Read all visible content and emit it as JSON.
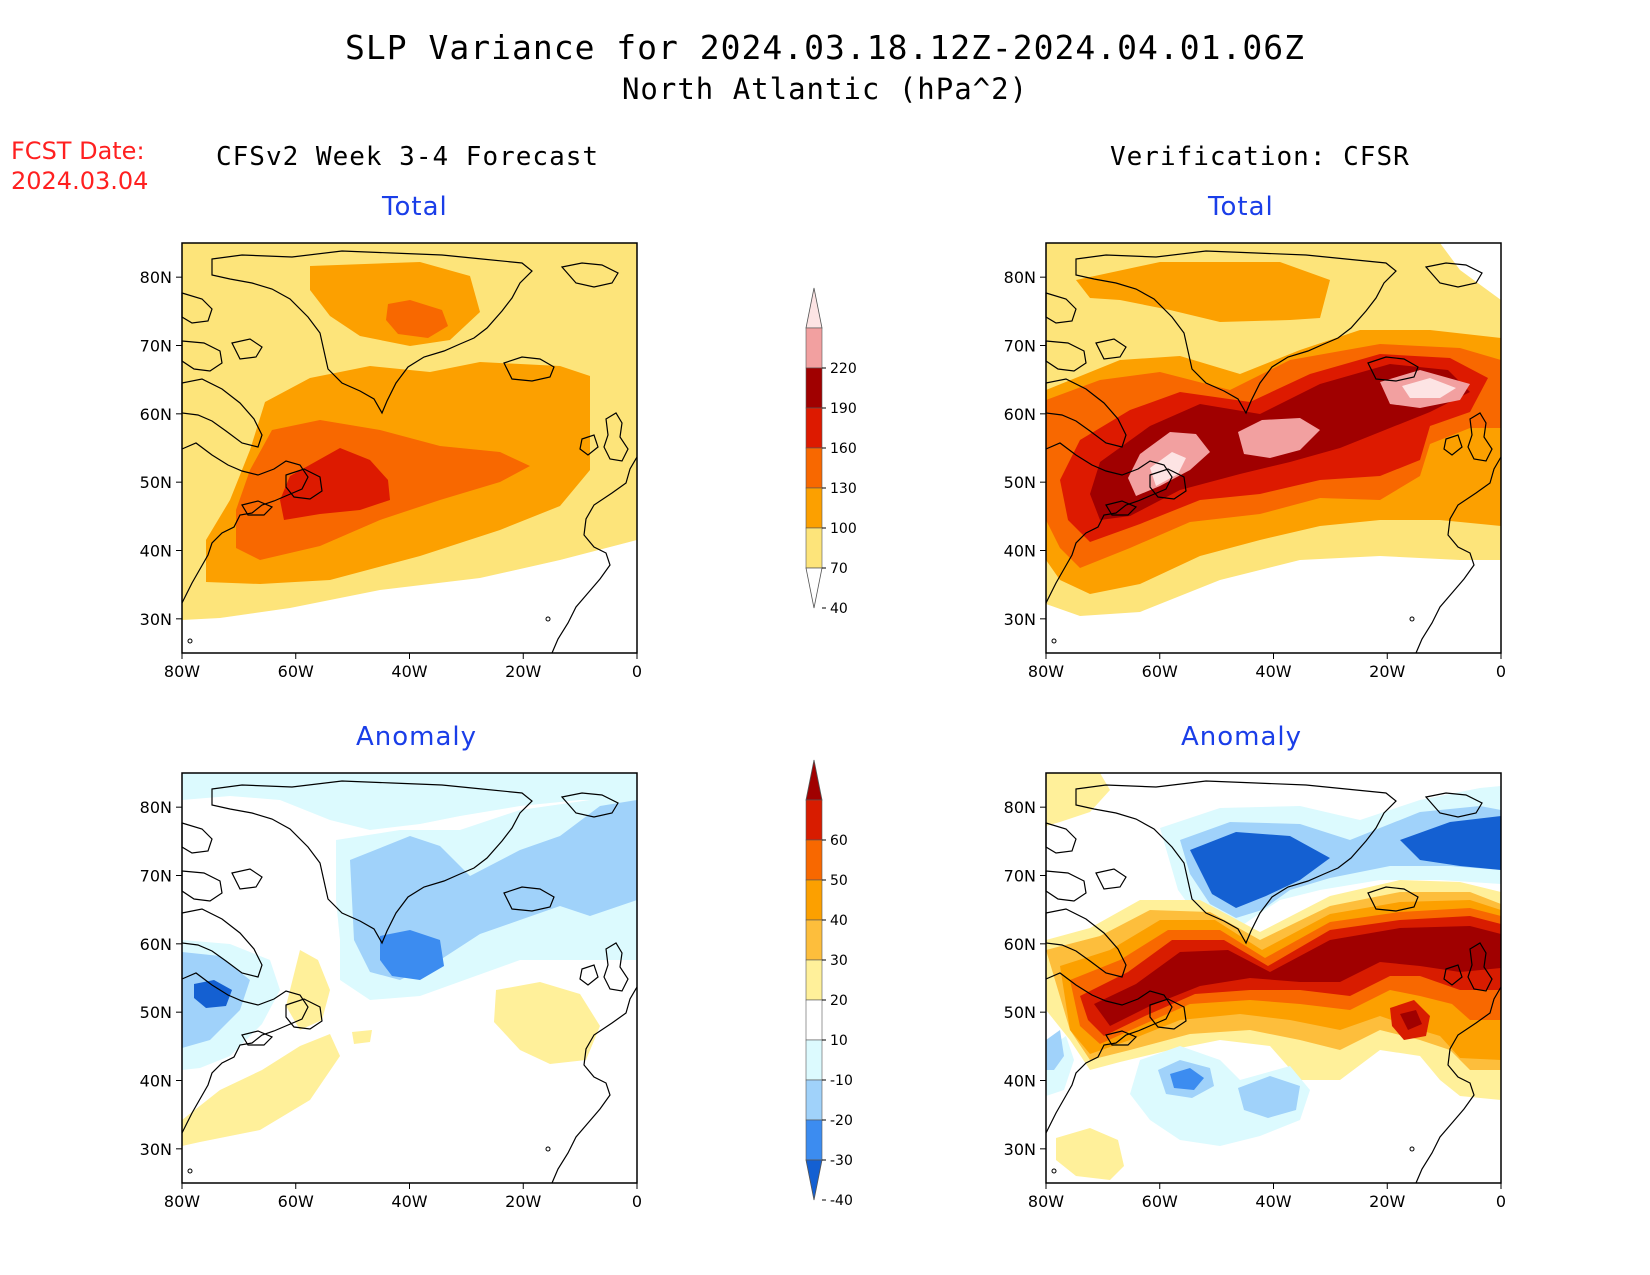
{
  "title": "SLP Variance for 2024.03.18.12Z-2024.04.01.06Z",
  "subtitle": "North Atlantic (hPa^2)",
  "forecast_date": {
    "label": "FCST Date:",
    "value": "2024.03.04"
  },
  "columns": {
    "left": "CFSv2 Week 3-4 Forecast",
    "right": "Verification: CFSR"
  },
  "panels": {
    "total": "Total",
    "anomaly": "Anomaly"
  },
  "axes": {
    "lat_labels": [
      "80N",
      "70N",
      "60N",
      "50N",
      "40N",
      "30N"
    ],
    "lon_labels": [
      "80W",
      "60W",
      "40W",
      "20W",
      "0"
    ]
  },
  "colorbars": {
    "total": {
      "levels": [
        "220",
        "190",
        "160",
        "130",
        "100",
        "70",
        "40"
      ],
      "colors": [
        "#fde4e4",
        "#f2a0a0",
        "#a00000",
        "#dd1a00",
        "#f86800",
        "#fca000",
        "#fde47a",
        "#ffffff"
      ]
    },
    "anomaly": {
      "levels": [
        "60",
        "50",
        "40",
        "30",
        "20",
        "10",
        "-10",
        "-20",
        "-30",
        "-40"
      ],
      "colors": [
        "#a00000",
        "#d81c00",
        "#f86800",
        "#fca000",
        "#fdbe3c",
        "#fff09a",
        "#ffffff",
        "#dcfafe",
        "#a0d2fa",
        "#3c8cf0",
        "#1460d2"
      ]
    }
  },
  "map_data": {
    "region": "North Atlantic",
    "lon_range": [
      "80W",
      "0"
    ],
    "lat_range": [
      "25N",
      "85N"
    ]
  }
}
